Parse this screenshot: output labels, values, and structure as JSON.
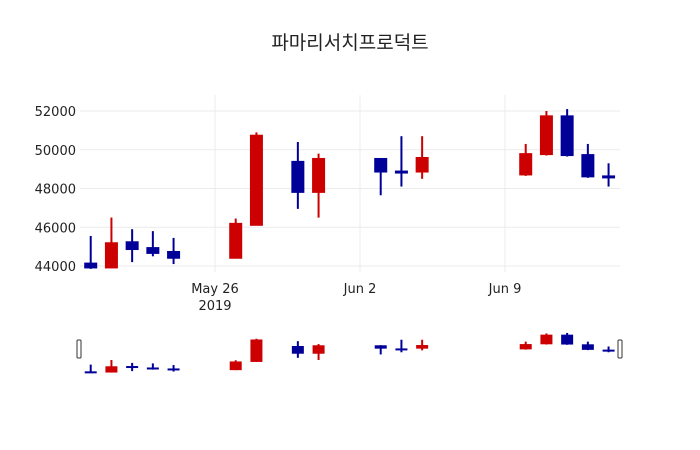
{
  "chart_data": {
    "type": "candlestick",
    "title": "파마리서치프로덕트",
    "xlabel": "",
    "ylabel": "",
    "ylim": [
      43700,
      52300
    ],
    "y_ticks": [
      44000,
      46000,
      48000,
      50000,
      52000
    ],
    "y_tick_labels": [
      "44000",
      "46000",
      "48000",
      "50000",
      "52000"
    ],
    "x_ticks": [
      {
        "date": "2019-05-26",
        "label": "May 26",
        "sublabel": "2019"
      },
      {
        "date": "2019-06-02",
        "label": "Jun 2",
        "sublabel": ""
      },
      {
        "date": "2019-06-09",
        "label": "Jun 9",
        "sublabel": ""
      }
    ],
    "grid": true,
    "rangeslider": true,
    "increasing_color": "#cc0000",
    "decreasing_color": "#000099",
    "series": [
      {
        "date": "2019-05-20",
        "open": 44150,
        "high": 45550,
        "low": 43850,
        "close": 43900
      },
      {
        "date": "2019-05-21",
        "open": 43900,
        "high": 46500,
        "low": 43900,
        "close": 45200
      },
      {
        "date": "2019-05-22",
        "open": 45250,
        "high": 45900,
        "low": 44200,
        "close": 44850
      },
      {
        "date": "2019-05-23",
        "open": 44950,
        "high": 45800,
        "low": 44500,
        "close": 44650
      },
      {
        "date": "2019-05-24",
        "open": 44750,
        "high": 45450,
        "low": 44100,
        "close": 44400
      },
      {
        "date": "2019-05-27",
        "open": 44400,
        "high": 46450,
        "low": 44400,
        "close": 46200
      },
      {
        "date": "2019-05-28",
        "open": 46100,
        "high": 50900,
        "low": 46100,
        "close": 50750
      },
      {
        "date": "2019-05-30",
        "open": 49400,
        "high": 50400,
        "low": 46950,
        "close": 47800
      },
      {
        "date": "2019-05-31",
        "open": 47800,
        "high": 49800,
        "low": 46500,
        "close": 49550
      },
      {
        "date": "2019-06-03",
        "open": 49550,
        "high": 49550,
        "low": 47650,
        "close": 48850
      },
      {
        "date": "2019-06-04",
        "open": 48900,
        "high": 50700,
        "low": 48100,
        "close": 48850
      },
      {
        "date": "2019-06-05",
        "open": 48850,
        "high": 50700,
        "low": 48500,
        "close": 49600
      },
      {
        "date": "2019-06-10",
        "open": 48700,
        "high": 50300,
        "low": 48650,
        "close": 49800
      },
      {
        "date": "2019-06-11",
        "open": 49750,
        "high": 52000,
        "low": 49700,
        "close": 51750
      },
      {
        "date": "2019-06-12",
        "open": 51750,
        "high": 52100,
        "low": 49650,
        "close": 49700
      },
      {
        "date": "2019-06-13",
        "open": 49750,
        "high": 50300,
        "low": 48550,
        "close": 48600
      },
      {
        "date": "2019-06-14",
        "open": 48650,
        "high": 49300,
        "low": 48100,
        "close": 48550
      }
    ]
  }
}
